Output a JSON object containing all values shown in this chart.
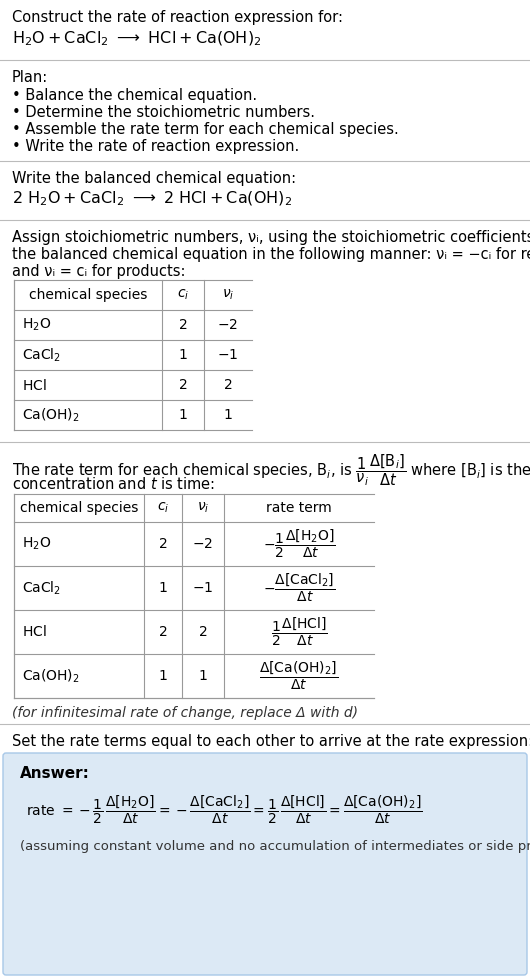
{
  "bg_color": "#ffffff",
  "text_color": "#000000",
  "answer_bg": "#dce9f5",
  "answer_border": "#a8c8e8",
  "title_line1": "Construct the rate of reaction expression for:",
  "plan_header": "Plan:",
  "plan_items": [
    "• Balance the chemical equation.",
    "• Determine the stoichiometric numbers.",
    "• Assemble the rate term for each chemical species.",
    "• Write the rate of reaction expression."
  ],
  "balanced_header": "Write the balanced chemical equation:",
  "assign_text1": "Assign stoichiometric numbers, νᵢ, using the stoichiometric coefficients, cᵢ, from",
  "assign_text2": "the balanced chemical equation in the following manner: νᵢ = −cᵢ for reactants",
  "assign_text3": "and νᵢ = cᵢ for products:",
  "set_equal_text": "Set the rate terms equal to each other to arrive at the rate expression:",
  "answer_label": "Answer:",
  "infinitesimal_note": "(for infinitesimal rate of change, replace Δ with d)",
  "footer_note": "(assuming constant volume and no accumulation of intermediates or side products)"
}
